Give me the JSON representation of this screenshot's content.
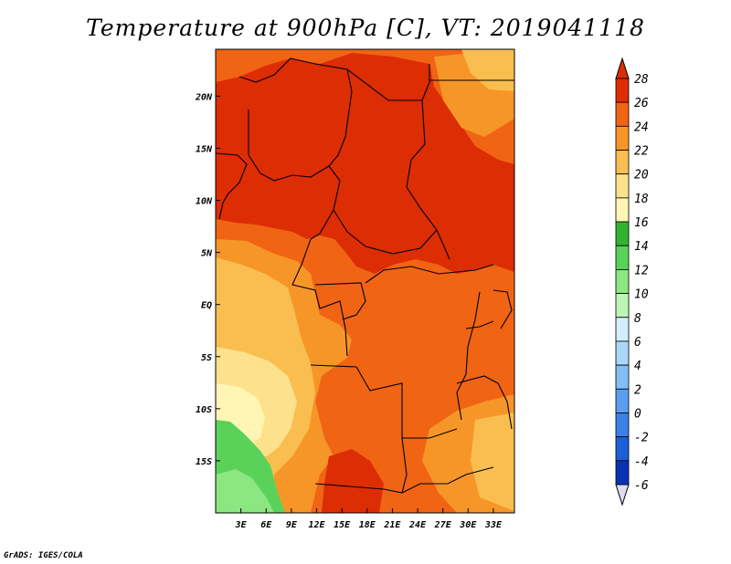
{
  "title": "Temperature at 900hPa [C], VT: 2019041118",
  "footer": "GrADS: IGES/COLA",
  "map": {
    "region": "Central Africa",
    "lon_range": [
      0,
      35.5
    ],
    "lat_range": [
      -20,
      24.5
    ],
    "lon_ticks": [
      {
        "value": 3,
        "label": "3E"
      },
      {
        "value": 6,
        "label": "6E"
      },
      {
        "value": 9,
        "label": "9E"
      },
      {
        "value": 12,
        "label": "12E"
      },
      {
        "value": 15,
        "label": "15E"
      },
      {
        "value": 18,
        "label": "18E"
      },
      {
        "value": 21,
        "label": "21E"
      },
      {
        "value": 24,
        "label": "24E"
      },
      {
        "value": 27,
        "label": "27E"
      },
      {
        "value": 30,
        "label": "30E"
      },
      {
        "value": 33,
        "label": "33E"
      }
    ],
    "lat_ticks": [
      {
        "value": 20,
        "label": "20N"
      },
      {
        "value": 15,
        "label": "15N"
      },
      {
        "value": 10,
        "label": "10N"
      },
      {
        "value": 5,
        "label": "5N"
      },
      {
        "value": 0,
        "label": "EQ"
      },
      {
        "value": -5,
        "label": "5S"
      },
      {
        "value": -10,
        "label": "10S"
      },
      {
        "value": -15,
        "label": "15S"
      }
    ]
  },
  "colorbar": {
    "levels": [
      "-6",
      "-4",
      "-2",
      "0",
      "2",
      "4",
      "6",
      "8",
      "10",
      "12",
      "14",
      "16",
      "18",
      "20",
      "22",
      "24",
      "26",
      "28"
    ],
    "colors": [
      "#08087a",
      "#0a32b4",
      "#1e5fd7",
      "#3c82e6",
      "#5a9ef0",
      "#82bef5",
      "#a8d7fa",
      "#d2eefc",
      "#bef5b4",
      "#8ce682",
      "#5ad25a",
      "#32b432",
      "#fff5b4",
      "#fde18c",
      "#fabe50",
      "#f79628",
      "#f06414",
      "#dc2d05",
      "#c81e00"
    ],
    "low_arrow_color": "#dcdcf5",
    "high_arrow_color": "#dc2d05"
  }
}
